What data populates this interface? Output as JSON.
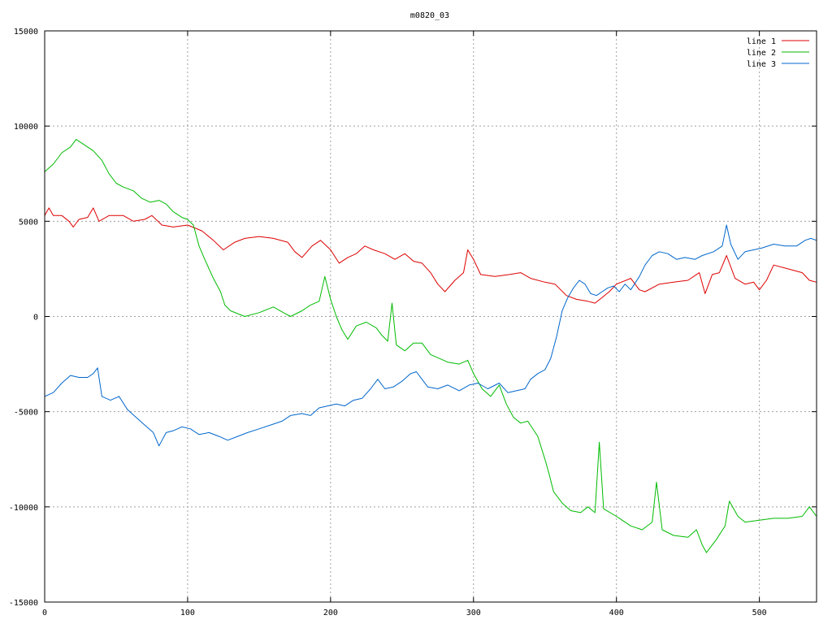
{
  "chart_data": {
    "type": "line",
    "title": "m0820_03",
    "xlabel": "",
    "ylabel": "",
    "xlim": [
      0,
      540
    ],
    "ylim": [
      -15000,
      15000
    ],
    "x_ticks": [
      0,
      100,
      200,
      300,
      400,
      500
    ],
    "y_ticks": [
      -15000,
      -10000,
      -5000,
      0,
      5000,
      10000,
      15000
    ],
    "x_tick_labels": [
      "0",
      "100",
      "200",
      "300",
      "400",
      "500"
    ],
    "y_tick_labels": [
      "-15000",
      "-10000",
      "-5000",
      "0",
      "5000",
      "10000",
      "15000"
    ],
    "grid": true,
    "legend_position": "top-right",
    "series": [
      {
        "name": "line 1",
        "color": "#dd0000",
        "points": [
          [
            0,
            5300
          ],
          [
            3,
            5700
          ],
          [
            6,
            5300
          ],
          [
            12,
            5300
          ],
          [
            17,
            5000
          ],
          [
            20,
            4700
          ],
          [
            24,
            5100
          ],
          [
            30,
            5200
          ],
          [
            34,
            5700
          ],
          [
            38,
            5000
          ],
          [
            45,
            5300
          ],
          [
            55,
            5300
          ],
          [
            62,
            5000
          ],
          [
            70,
            5100
          ],
          [
            75,
            5300
          ],
          [
            82,
            4800
          ],
          [
            90,
            4700
          ],
          [
            100,
            4800
          ],
          [
            110,
            4500
          ],
          [
            118,
            4000
          ],
          [
            125,
            3500
          ],
          [
            133,
            3900
          ],
          [
            140,
            4100
          ],
          [
            150,
            4200
          ],
          [
            160,
            4100
          ],
          [
            170,
            3900
          ],
          [
            175,
            3400
          ],
          [
            180,
            3100
          ],
          [
            187,
            3700
          ],
          [
            193,
            4000
          ],
          [
            200,
            3500
          ],
          [
            206,
            2800
          ],
          [
            212,
            3100
          ],
          [
            218,
            3300
          ],
          [
            224,
            3700
          ],
          [
            230,
            3500
          ],
          [
            238,
            3300
          ],
          [
            245,
            3000
          ],
          [
            252,
            3300
          ],
          [
            258,
            2900
          ],
          [
            264,
            2800
          ],
          [
            270,
            2300
          ],
          [
            275,
            1700
          ],
          [
            280,
            1300
          ],
          [
            287,
            1900
          ],
          [
            293,
            2300
          ],
          [
            296,
            3500
          ],
          [
            300,
            3000
          ],
          [
            305,
            2200
          ],
          [
            315,
            2100
          ],
          [
            325,
            2200
          ],
          [
            333,
            2300
          ],
          [
            340,
            2000
          ],
          [
            350,
            1800
          ],
          [
            357,
            1700
          ],
          [
            365,
            1100
          ],
          [
            372,
            900
          ],
          [
            380,
            800
          ],
          [
            385,
            700
          ],
          [
            390,
            1000
          ],
          [
            395,
            1300
          ],
          [
            400,
            1700
          ],
          [
            410,
            2000
          ],
          [
            416,
            1400
          ],
          [
            420,
            1300
          ],
          [
            430,
            1700
          ],
          [
            440,
            1800
          ],
          [
            450,
            1900
          ],
          [
            458,
            2300
          ],
          [
            462,
            1200
          ],
          [
            467,
            2200
          ],
          [
            472,
            2300
          ],
          [
            477,
            3200
          ],
          [
            483,
            2000
          ],
          [
            490,
            1700
          ],
          [
            496,
            1800
          ],
          [
            500,
            1400
          ],
          [
            505,
            1900
          ],
          [
            510,
            2700
          ],
          [
            520,
            2500
          ],
          [
            530,
            2300
          ],
          [
            535,
            1900
          ],
          [
            540,
            1800
          ]
        ]
      },
      {
        "name": "line 2",
        "color": "#00bb00",
        "points": [
          [
            0,
            7600
          ],
          [
            6,
            8000
          ],
          [
            12,
            8600
          ],
          [
            18,
            8900
          ],
          [
            22,
            9300
          ],
          [
            28,
            9000
          ],
          [
            34,
            8700
          ],
          [
            40,
            8200
          ],
          [
            45,
            7500
          ],
          [
            50,
            7000
          ],
          [
            55,
            6800
          ],
          [
            62,
            6600
          ],
          [
            68,
            6200
          ],
          [
            74,
            6000
          ],
          [
            80,
            6100
          ],
          [
            85,
            5900
          ],
          [
            90,
            5500
          ],
          [
            96,
            5200
          ],
          [
            100,
            5100
          ],
          [
            104,
            4800
          ],
          [
            108,
            3700
          ],
          [
            112,
            3000
          ],
          [
            118,
            2000
          ],
          [
            123,
            1300
          ],
          [
            126,
            600
          ],
          [
            130,
            300
          ],
          [
            140,
            0
          ],
          [
            150,
            200
          ],
          [
            160,
            500
          ],
          [
            167,
            200
          ],
          [
            172,
            0
          ],
          [
            180,
            300
          ],
          [
            186,
            600
          ],
          [
            192,
            800
          ],
          [
            196,
            2100
          ],
          [
            200,
            900
          ],
          [
            204,
            0
          ],
          [
            208,
            -700
          ],
          [
            212,
            -1200
          ],
          [
            218,
            -500
          ],
          [
            225,
            -300
          ],
          [
            232,
            -600
          ],
          [
            236,
            -1000
          ],
          [
            240,
            -1300
          ],
          [
            243,
            700
          ],
          [
            246,
            -1500
          ],
          [
            252,
            -1800
          ],
          [
            258,
            -1400
          ],
          [
            264,
            -1400
          ],
          [
            270,
            -2000
          ],
          [
            276,
            -2200
          ],
          [
            282,
            -2400
          ],
          [
            290,
            -2500
          ],
          [
            296,
            -2300
          ],
          [
            300,
            -3000
          ],
          [
            306,
            -3800
          ],
          [
            312,
            -4200
          ],
          [
            318,
            -3600
          ],
          [
            323,
            -4600
          ],
          [
            328,
            -5300
          ],
          [
            333,
            -5600
          ],
          [
            338,
            -5500
          ],
          [
            345,
            -6300
          ],
          [
            350,
            -7500
          ],
          [
            353,
            -8300
          ],
          [
            356,
            -9200
          ],
          [
            362,
            -9800
          ],
          [
            368,
            -10200
          ],
          [
            375,
            -10300
          ],
          [
            380,
            -10000
          ],
          [
            385,
            -10300
          ],
          [
            388,
            -6600
          ],
          [
            391,
            -10100
          ],
          [
            400,
            -10500
          ],
          [
            410,
            -11000
          ],
          [
            418,
            -11200
          ],
          [
            425,
            -10800
          ],
          [
            428,
            -8700
          ],
          [
            432,
            -11200
          ],
          [
            440,
            -11500
          ],
          [
            450,
            -11600
          ],
          [
            456,
            -11200
          ],
          [
            460,
            -12000
          ],
          [
            463,
            -12400
          ],
          [
            470,
            -11700
          ],
          [
            476,
            -11000
          ],
          [
            479,
            -9700
          ],
          [
            485,
            -10500
          ],
          [
            490,
            -10800
          ],
          [
            500,
            -10700
          ],
          [
            510,
            -10600
          ],
          [
            520,
            -10600
          ],
          [
            530,
            -10500
          ],
          [
            535,
            -10000
          ],
          [
            540,
            -10500
          ]
        ]
      },
      {
        "name": "line 3",
        "color": "#0066cc",
        "points": [
          [
            0,
            -4200
          ],
          [
            6,
            -4000
          ],
          [
            12,
            -3500
          ],
          [
            18,
            -3100
          ],
          [
            24,
            -3200
          ],
          [
            30,
            -3200
          ],
          [
            34,
            -3000
          ],
          [
            37,
            -2700
          ],
          [
            40,
            -4200
          ],
          [
            46,
            -4400
          ],
          [
            52,
            -4200
          ],
          [
            58,
            -4900
          ],
          [
            64,
            -5300
          ],
          [
            70,
            -5700
          ],
          [
            76,
            -6100
          ],
          [
            80,
            -6800
          ],
          [
            85,
            -6100
          ],
          [
            90,
            -6000
          ],
          [
            96,
            -5800
          ],
          [
            102,
            -5900
          ],
          [
            108,
            -6200
          ],
          [
            115,
            -6100
          ],
          [
            122,
            -6300
          ],
          [
            128,
            -6500
          ],
          [
            135,
            -6300
          ],
          [
            142,
            -6100
          ],
          [
            150,
            -5900
          ],
          [
            158,
            -5700
          ],
          [
            166,
            -5500
          ],
          [
            172,
            -5200
          ],
          [
            180,
            -5100
          ],
          [
            186,
            -5200
          ],
          [
            192,
            -4800
          ],
          [
            198,
            -4700
          ],
          [
            204,
            -4600
          ],
          [
            210,
            -4700
          ],
          [
            216,
            -4400
          ],
          [
            222,
            -4300
          ],
          [
            228,
            -3800
          ],
          [
            233,
            -3300
          ],
          [
            238,
            -3800
          ],
          [
            244,
            -3700
          ],
          [
            250,
            -3400
          ],
          [
            256,
            -3000
          ],
          [
            260,
            -2900
          ],
          [
            264,
            -3300
          ],
          [
            268,
            -3700
          ],
          [
            275,
            -3800
          ],
          [
            282,
            -3600
          ],
          [
            290,
            -3900
          ],
          [
            297,
            -3600
          ],
          [
            303,
            -3500
          ],
          [
            310,
            -3800
          ],
          [
            318,
            -3500
          ],
          [
            324,
            -4000
          ],
          [
            330,
            -3900
          ],
          [
            336,
            -3800
          ],
          [
            340,
            -3300
          ],
          [
            345,
            -3000
          ],
          [
            350,
            -2800
          ],
          [
            354,
            -2200
          ],
          [
            358,
            -1100
          ],
          [
            362,
            300
          ],
          [
            366,
            1000
          ],
          [
            370,
            1500
          ],
          [
            374,
            1900
          ],
          [
            378,
            1700
          ],
          [
            382,
            1200
          ],
          [
            386,
            1100
          ],
          [
            390,
            1300
          ],
          [
            394,
            1500
          ],
          [
            398,
            1600
          ],
          [
            402,
            1300
          ],
          [
            406,
            1700
          ],
          [
            410,
            1400
          ],
          [
            416,
            2100
          ],
          [
            420,
            2700
          ],
          [
            425,
            3200
          ],
          [
            430,
            3400
          ],
          [
            436,
            3300
          ],
          [
            442,
            3000
          ],
          [
            448,
            3100
          ],
          [
            455,
            3000
          ],
          [
            460,
            3200
          ],
          [
            468,
            3400
          ],
          [
            474,
            3700
          ],
          [
            477,
            4800
          ],
          [
            480,
            3800
          ],
          [
            485,
            3000
          ],
          [
            490,
            3400
          ],
          [
            496,
            3500
          ],
          [
            502,
            3600
          ],
          [
            510,
            3800
          ],
          [
            518,
            3700
          ],
          [
            526,
            3700
          ],
          [
            532,
            4000
          ],
          [
            536,
            4100
          ],
          [
            540,
            4000
          ]
        ]
      }
    ]
  }
}
